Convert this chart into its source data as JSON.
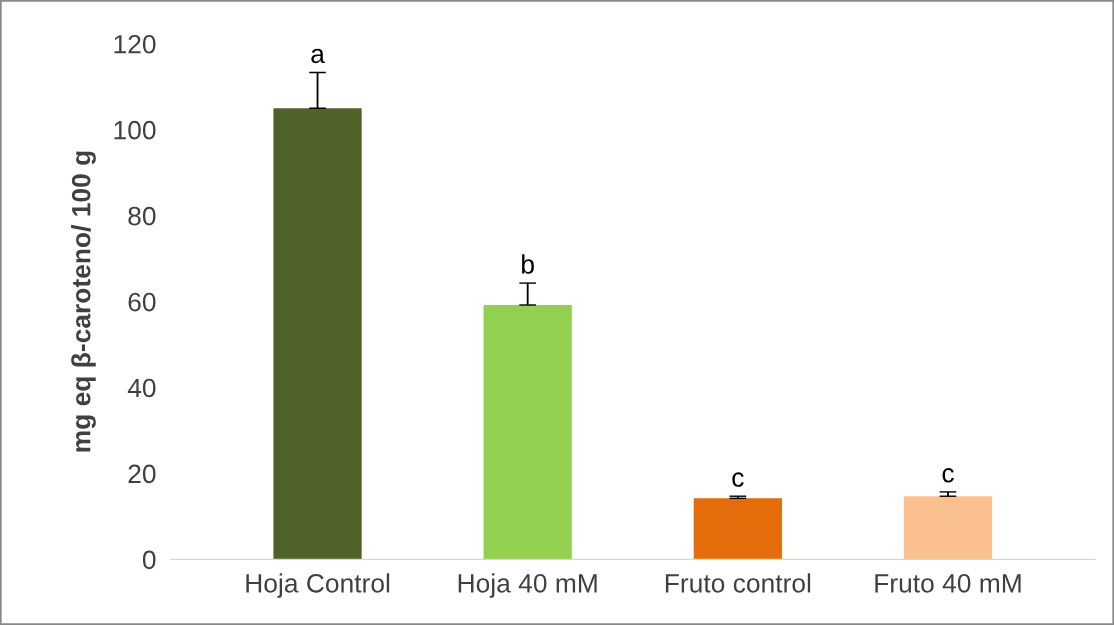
{
  "chart_data": {
    "type": "bar",
    "ylabel": "mg eq β-caroteno/ 100 g",
    "categories": [
      "Hoja Control",
      "Hoja 40 mM",
      "Fruto control",
      "Fruto 40 mM"
    ],
    "values": [
      105,
      59.2,
      14.2,
      14.7
    ],
    "errors": [
      [
        105,
        113.3
      ],
      [
        59.2,
        64.3
      ],
      [
        14.2,
        14.7
      ],
      [
        14.7,
        15.7
      ]
    ],
    "colors": [
      "#4f6228",
      "#92d050",
      "#e46c0a",
      "#fac090"
    ],
    "ylim": [
      0,
      120
    ],
    "yticks": [
      0,
      20,
      40,
      60,
      80,
      100,
      120
    ],
    "grid": false,
    "legend": false,
    "annotations": [
      "a",
      "b",
      "c",
      "c"
    ]
  }
}
